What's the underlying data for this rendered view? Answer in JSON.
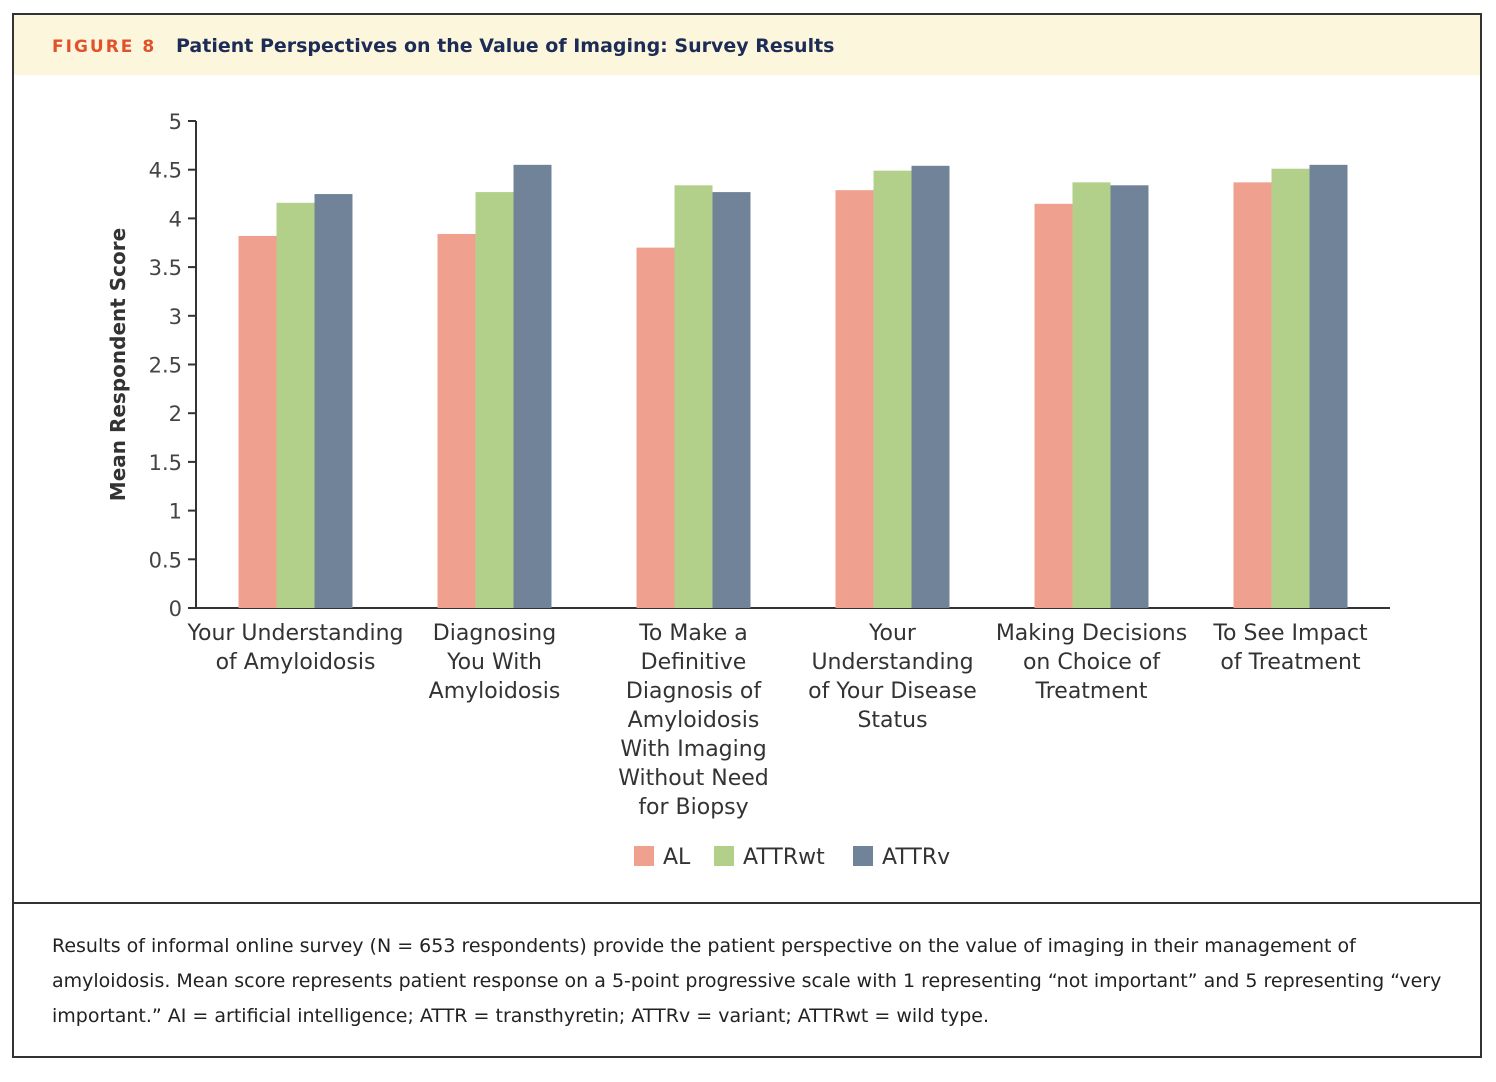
{
  "figure": {
    "number": "FIGURE 8",
    "title": "Patient Perspectives on the Value of Imaging: Survey Results"
  },
  "caption": "Results of informal online survey (N = 653 respondents) provide the patient perspective on the value of imaging in their management of amyloidosis. Mean score represents patient response on a 5-point progressive scale with 1 representing “not important” and 5 representing “very important.” AI = artificial intelligence; ATTR = transthyretin; ATTRv = variant; ATTRwt = wild type.",
  "colors": {
    "AL": "#f0a08e",
    "ATTRwt": "#b3d08a",
    "ATTRv": "#718399"
  },
  "chart_data": {
    "type": "bar",
    "title": "Patient Perspectives on the Value of Imaging: Survey Results",
    "xlabel": "",
    "ylabel": "Mean Respondent Score",
    "ylim": [
      0,
      5
    ],
    "yticks": [
      "0",
      "0.5",
      "1",
      "1.5",
      "2",
      "2.5",
      "3",
      "3.5",
      "4",
      "4.5",
      "5"
    ],
    "grid": false,
    "legend_position": "bottom-center",
    "categories": [
      [
        "Your Understanding",
        "of Amyloidosis"
      ],
      [
        "Diagnosing",
        "You With",
        "Amyloidosis"
      ],
      [
        "To Make a",
        "Definitive",
        "Diagnosis of",
        "Amyloidosis",
        "With Imaging",
        "Without Need",
        "for Biopsy"
      ],
      [
        "Your",
        "Understanding",
        "of Your Disease",
        "Status"
      ],
      [
        "Making Decisions",
        "on Choice of",
        "Treatment"
      ],
      [
        "To See Impact",
        "of Treatment"
      ]
    ],
    "series": [
      {
        "name": "AL",
        "values": [
          3.82,
          3.84,
          3.7,
          4.29,
          4.15,
          4.37
        ]
      },
      {
        "name": "ATTRwt",
        "values": [
          4.16,
          4.27,
          4.34,
          4.49,
          4.37,
          4.51
        ]
      },
      {
        "name": "ATTRv",
        "values": [
          4.25,
          4.55,
          4.27,
          4.54,
          4.34,
          4.55
        ]
      }
    ]
  }
}
